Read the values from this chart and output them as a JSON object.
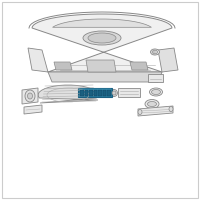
{
  "bg_color": "#ffffff",
  "line_color": "#aaaaaa",
  "line_color_dark": "#888888",
  "line_color_light": "#cccccc",
  "ac_color": "#2a7fa0",
  "ac_edge": "#1a5f80",
  "ac_detail": "#5ab8d8",
  "fig_width": 2.0,
  "fig_height": 2.0,
  "dpi": 100
}
